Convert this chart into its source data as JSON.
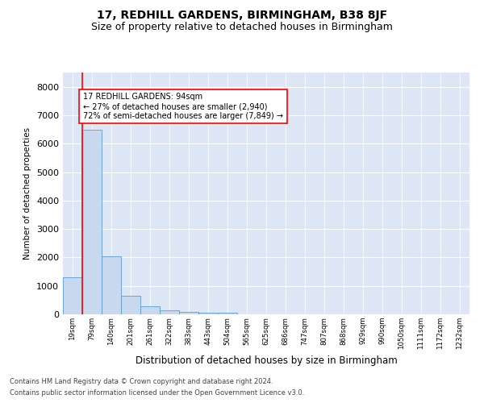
{
  "title": "17, REDHILL GARDENS, BIRMINGHAM, B38 8JF",
  "subtitle": "Size of property relative to detached houses in Birmingham",
  "xlabel": "Distribution of detached houses by size in Birmingham",
  "ylabel": "Number of detached properties",
  "footnote1": "Contains HM Land Registry data © Crown copyright and database right 2024.",
  "footnote2": "Contains public sector information licensed under the Open Government Licence v3.0.",
  "annotation_line1": "17 REDHILL GARDENS: 94sqm",
  "annotation_line2": "← 27% of detached houses are smaller (2,940)",
  "annotation_line3": "72% of semi-detached houses are larger (7,849) →",
  "bar_labels": [
    "19sqm",
    "79sqm",
    "140sqm",
    "201sqm",
    "261sqm",
    "322sqm",
    "383sqm",
    "443sqm",
    "504sqm",
    "565sqm",
    "625sqm",
    "686sqm",
    "747sqm",
    "807sqm",
    "868sqm",
    "929sqm",
    "990sqm",
    "1050sqm",
    "1111sqm",
    "1172sqm",
    "1232sqm"
  ],
  "bar_values": [
    1300,
    6500,
    2050,
    650,
    270,
    140,
    90,
    55,
    55,
    0,
    0,
    0,
    0,
    0,
    0,
    0,
    0,
    0,
    0,
    0,
    0
  ],
  "bar_color": "#c8d9ef",
  "bar_edge_color": "#5b9bd5",
  "red_line_x": 0.5,
  "ylim": [
    0,
    8500
  ],
  "yticks": [
    0,
    1000,
    2000,
    3000,
    4000,
    5000,
    6000,
    7000,
    8000
  ],
  "bg_color": "#dce6f5",
  "grid_color": "#ffffff",
  "title_fontsize": 10,
  "subtitle_fontsize": 9
}
